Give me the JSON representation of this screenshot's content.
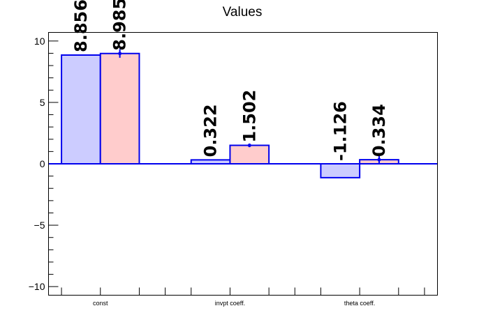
{
  "chart_data": {
    "type": "bar",
    "title": "Values",
    "categories": [
      "const",
      "invpt coeff.",
      "theta coeff."
    ],
    "series": [
      {
        "values": [
          8.856,
          0.322,
          -1.126
        ],
        "errors": [
          0,
          0,
          0
        ],
        "labels": [
          "8.856",
          "0.322",
          "-1.126"
        ],
        "color": "#ccccff"
      },
      {
        "values": [
          8.985,
          1.502,
          0.334
        ],
        "errors": [
          0.35,
          0.15,
          0.3
        ],
        "labels": [
          "8.985",
          "1.502",
          "0.334"
        ],
        "color": "#ffcccc"
      }
    ],
    "outline_color": "#0000ee",
    "ylim": [
      -10.7,
      10.7
    ],
    "yticks": [
      -10,
      -5,
      0,
      5,
      10
    ],
    "ytick_labels": [
      "−10",
      "−5",
      "0",
      "5",
      "10"
    ],
    "grid": false,
    "xlabel": "",
    "ylabel": ""
  }
}
